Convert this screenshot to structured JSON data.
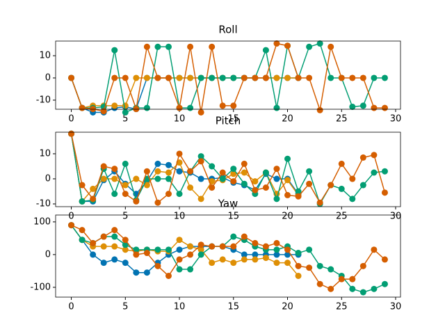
{
  "chart_data": [
    {
      "type": "line",
      "title": "Roll",
      "x": [
        0,
        1,
        2,
        3,
        4,
        5,
        6,
        7,
        8,
        9,
        10,
        11,
        12,
        13,
        14,
        15,
        16,
        17,
        18,
        19,
        20,
        21,
        22,
        23,
        24,
        25,
        26,
        27,
        28,
        29
      ],
      "xlim": [
        -1.45,
        30.45
      ],
      "xticks": [
        0,
        5,
        10,
        15,
        20,
        25,
        30
      ],
      "ylim": [
        -14.1,
        16.6
      ],
      "yticks": [
        -10,
        0,
        10
      ],
      "series": [
        {
          "color": "#0173b2",
          "values": [
            0,
            -13.5,
            -15.5,
            -15.5,
            -13.5,
            -13,
            -14,
            0,
            0,
            0,
            0,
            0,
            0,
            0,
            0,
            0,
            0,
            0,
            0,
            0,
            0,
            0,
            null,
            null,
            null,
            null,
            null,
            null,
            null,
            null
          ]
        },
        {
          "color": "#de8f05",
          "values": [
            0,
            -13.5,
            -12.5,
            -12.5,
            -12.5,
            -12.5,
            0,
            0,
            0,
            0,
            0,
            0,
            0,
            0,
            0,
            0,
            0,
            0,
            0,
            0,
            0,
            0,
            null,
            null,
            null,
            null,
            null,
            null,
            null,
            null
          ]
        },
        {
          "color": "#029e73",
          "values": [
            0,
            -13.5,
            -13.5,
            -13,
            12.5,
            -15.5,
            -13.5,
            -13.5,
            14,
            14,
            -13.5,
            -13.5,
            0,
            0,
            0,
            0,
            0,
            0,
            12.5,
            -13.5,
            14.5,
            0,
            14,
            15.5,
            0,
            0,
            -13,
            -12.5,
            0,
            0
          ]
        },
        {
          "color": "#d55e00",
          "values": [
            0,
            -13.5,
            -14,
            -15,
            0,
            0,
            -14,
            14,
            0,
            0,
            -13.5,
            14,
            -15.5,
            14,
            -12.5,
            -12.5,
            0,
            0,
            0,
            15.5,
            14.5,
            0,
            0,
            -14.5,
            14,
            0,
            0,
            0,
            -13.5,
            -13.5
          ]
        }
      ]
    },
    {
      "type": "line",
      "title": "Pitch",
      "x": [
        0,
        1,
        2,
        3,
        4,
        5,
        6,
        7,
        8,
        9,
        10,
        11,
        12,
        13,
        14,
        15,
        16,
        17,
        18,
        19,
        20,
        21,
        22,
        23,
        24,
        25,
        26,
        27,
        28,
        29
      ],
      "xlim": [
        -1.45,
        30.45
      ],
      "xticks": [
        0,
        5,
        10,
        15,
        20,
        25,
        30
      ],
      "ylim": [
        -11.1,
        18.6
      ],
      "yticks": [
        -10,
        0,
        10
      ],
      "series": [
        {
          "color": "#0173b2",
          "values": [
            18,
            -9,
            -9,
            -0.5,
            3,
            -2,
            -6,
            -1,
            6,
            5.5,
            3,
            2.5,
            0,
            0,
            0.5,
            -1.5,
            -2.5,
            -4.5,
            2,
            0,
            0,
            -6,
            null,
            null,
            null,
            null,
            null,
            null,
            null,
            null
          ]
        },
        {
          "color": "#de8f05",
          "values": [
            18,
            -9,
            -4,
            0,
            0,
            -2.5,
            0,
            -2.5,
            3,
            2.5,
            6.5,
            -3.5,
            -8,
            -1,
            -0.5,
            2,
            2.5,
            -1,
            2.5,
            -6,
            -0.5,
            -6.5,
            null,
            null,
            null,
            null,
            null,
            null,
            null,
            null
          ]
        },
        {
          "color": "#029e73",
          "values": [
            18,
            -9,
            -8.5,
            4,
            -6,
            6,
            -8.5,
            0,
            0,
            0,
            -6,
            3,
            9,
            5,
            0,
            4,
            -2,
            -6,
            2.5,
            -8,
            8,
            -5,
            3,
            -10,
            -2.5,
            -4,
            -8,
            -2.5,
            2.5,
            3
          ]
        },
        {
          "color": "#d55e00",
          "values": [
            18,
            -2.5,
            -8,
            5,
            4,
            -6,
            -9,
            3,
            -9.5,
            -6,
            10,
            3,
            7,
            -3.5,
            2.5,
            -1,
            6,
            -4.5,
            -3.5,
            4,
            -6.5,
            -7,
            -2,
            -9.5,
            -2.5,
            6,
            0,
            8.5,
            9.5,
            -5.5
          ]
        }
      ]
    },
    {
      "type": "line",
      "title": "Yaw",
      "x": [
        0,
        1,
        2,
        3,
        4,
        5,
        6,
        7,
        8,
        9,
        10,
        11,
        12,
        13,
        14,
        15,
        16,
        17,
        18,
        19,
        20,
        21,
        22,
        23,
        24,
        25,
        26,
        27,
        28,
        29
      ],
      "xlim": [
        -1.45,
        30.45
      ],
      "xticks": [
        0,
        5,
        10,
        15,
        20,
        25,
        30
      ],
      "ylim": [
        -130,
        121
      ],
      "yticks": [
        -100,
        0,
        100
      ],
      "series": [
        {
          "color": "#0173b2",
          "values": [
            90,
            45,
            0,
            -25,
            -15,
            -25,
            -55,
            -55,
            -25,
            0,
            15,
            25,
            25,
            25,
            25,
            15,
            0,
            0,
            0,
            0,
            0,
            0,
            null,
            null,
            null,
            null,
            null,
            null,
            null,
            null
          ]
        },
        {
          "color": "#de8f05",
          "values": [
            90,
            45,
            25,
            25,
            25,
            15,
            10,
            15,
            10,
            10,
            45,
            25,
            15,
            -25,
            -15,
            -25,
            -15,
            -15,
            -10,
            -25,
            -25,
            -65,
            null,
            null,
            null,
            null,
            null,
            null,
            null,
            null
          ]
        },
        {
          "color": "#029e73",
          "values": [
            90,
            45,
            35,
            55,
            55,
            30,
            15,
            15,
            15,
            15,
            -45,
            -45,
            0,
            25,
            25,
            55,
            45,
            25,
            15,
            15,
            25,
            5,
            15,
            -35,
            -45,
            -65,
            -105,
            -115,
            -105,
            -90
          ]
        },
        {
          "color": "#d55e00",
          "values": [
            90,
            75,
            35,
            55,
            75,
            45,
            0,
            5,
            -35,
            -65,
            -15,
            0,
            30,
            25,
            25,
            25,
            55,
            35,
            25,
            35,
            15,
            -35,
            -40,
            -90,
            -105,
            -75,
            -75,
            -35,
            15,
            -15
          ]
        }
      ]
    }
  ]
}
